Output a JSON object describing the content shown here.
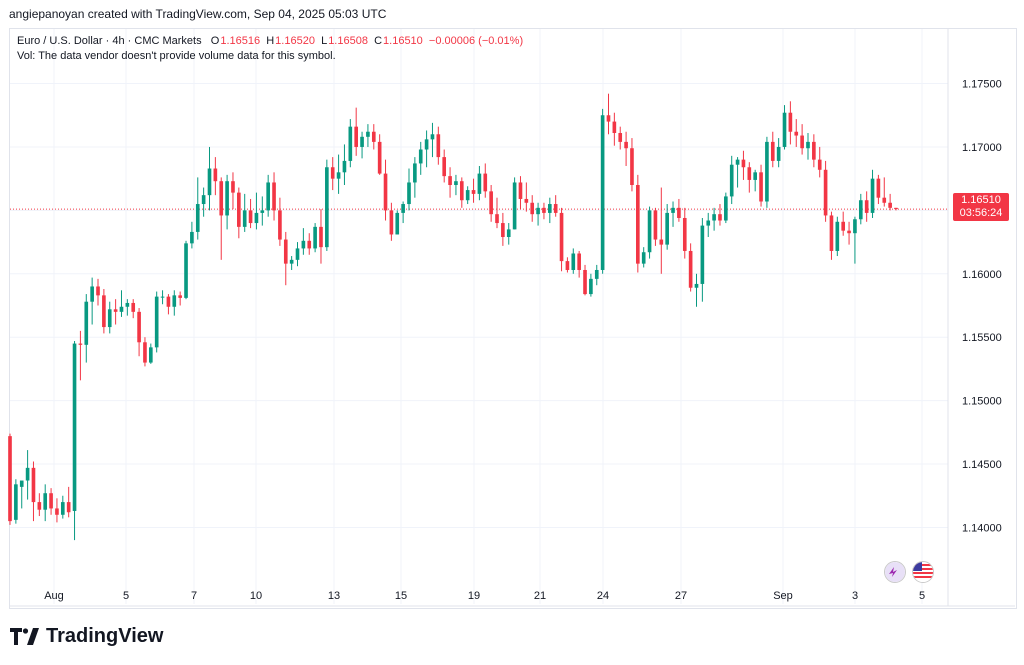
{
  "header": {
    "created_line": "angiepanoyan created with TradingView.com, Sep 04, 2025 05:03 UTC"
  },
  "legend": {
    "symbol": "Euro / U.S. Dollar · 4h · CMC Markets",
    "o_label": "O",
    "o_value": "1.16516",
    "h_label": "H",
    "h_value": "1.16520",
    "l_label": "L",
    "l_value": "1.16508",
    "c_label": "C",
    "c_value": "1.16510",
    "change": "−0.00006 (−0.01%)",
    "vol_text": "Vol: The data vendor doesn't provide volume data for this symbol."
  },
  "price_tag": {
    "price": "1.16510",
    "countdown": "03:56:24"
  },
  "colors": {
    "up": "#089981",
    "down": "#f23645",
    "grid": "#f0f3fa",
    "text": "#131722"
  },
  "logo": {
    "text": "TradingView"
  },
  "flag_icons": [
    "eu-flag-icon",
    "us-flag-icon"
  ],
  "chart_data": {
    "type": "candlestick",
    "title": "Euro / U.S. Dollar · 4h · CMC Markets",
    "y_ticks": [
      "1.17500",
      "1.17000",
      "1.16500",
      "1.16000",
      "1.15500",
      "1.15000",
      "1.14500",
      "1.14000"
    ],
    "y_tick_values": [
      1.175,
      1.17,
      1.165,
      1.16,
      1.155,
      1.15,
      1.145,
      1.14
    ],
    "x_ticks": [
      "Aug",
      "5",
      "7",
      "10",
      "13",
      "15",
      "19",
      "21",
      "24",
      "27",
      "Sep",
      "3",
      "5"
    ],
    "ylim": [
      1.1357,
      1.1793
    ],
    "last_price": 1.1651,
    "grid": true,
    "points": [
      [
        1.1472,
        1.1474,
        1.1402,
        1.1405
      ],
      [
        1.1406,
        1.1438,
        1.1403,
        1.1434
      ],
      [
        1.1432,
        1.1436,
        1.1415,
        1.1437
      ],
      [
        1.1437,
        1.1461,
        1.1422,
        1.1447
      ],
      [
        1.1447,
        1.1452,
        1.1405,
        1.142
      ],
      [
        1.142,
        1.1427,
        1.1409,
        1.1414
      ],
      [
        1.1414,
        1.1434,
        1.1405,
        1.1427
      ],
      [
        1.1427,
        1.1431,
        1.141,
        1.1415
      ],
      [
        1.1415,
        1.1423,
        1.1404,
        1.141
      ],
      [
        1.141,
        1.1425,
        1.1407,
        1.142
      ],
      [
        1.142,
        1.1432,
        1.1408,
        1.1412
      ],
      [
        1.1413,
        1.1547,
        1.139,
        1.1545
      ],
      [
        1.1545,
        1.1555,
        1.1516,
        1.1544
      ],
      [
        1.1544,
        1.1584,
        1.153,
        1.1578
      ],
      [
        1.1578,
        1.1597,
        1.156,
        1.159
      ],
      [
        1.159,
        1.1596,
        1.1575,
        1.1583
      ],
      [
        1.1583,
        1.1588,
        1.1553,
        1.1558
      ],
      [
        1.1558,
        1.1578,
        1.1553,
        1.1572
      ],
      [
        1.1572,
        1.158,
        1.156,
        1.157
      ],
      [
        1.157,
        1.1587,
        1.1566,
        1.1574
      ],
      [
        1.1574,
        1.158,
        1.1567,
        1.1577
      ],
      [
        1.1577,
        1.158,
        1.1565,
        1.157
      ],
      [
        1.157,
        1.1573,
        1.1535,
        1.1546
      ],
      [
        1.1546,
        1.155,
        1.1527,
        1.153
      ],
      [
        1.153,
        1.1545,
        1.1529,
        1.1542
      ],
      [
        1.1542,
        1.1586,
        1.1538,
        1.1582
      ],
      [
        1.1582,
        1.1587,
        1.1576,
        1.1582
      ],
      [
        1.1582,
        1.1584,
        1.1568,
        1.1574
      ],
      [
        1.1574,
        1.1587,
        1.1567,
        1.1583
      ],
      [
        1.1583,
        1.1586,
        1.1575,
        1.1581
      ],
      [
        1.1581,
        1.1626,
        1.158,
        1.1624
      ],
      [
        1.1624,
        1.1641,
        1.162,
        1.1633
      ],
      [
        1.1633,
        1.1676,
        1.1627,
        1.1655
      ],
      [
        1.1655,
        1.1668,
        1.1645,
        1.1662
      ],
      [
        1.1662,
        1.17,
        1.165,
        1.1683
      ],
      [
        1.1683,
        1.1692,
        1.1662,
        1.1673
      ],
      [
        1.1673,
        1.1676,
        1.1611,
        1.1646
      ],
      [
        1.1646,
        1.1678,
        1.1635,
        1.1673
      ],
      [
        1.1673,
        1.168,
        1.1651,
        1.1664
      ],
      [
        1.1664,
        1.1668,
        1.1628,
        1.1637
      ],
      [
        1.1637,
        1.1663,
        1.1633,
        1.165
      ],
      [
        1.165,
        1.1659,
        1.1636,
        1.164
      ],
      [
        1.164,
        1.1664,
        1.1635,
        1.1648
      ],
      [
        1.1648,
        1.1661,
        1.1638,
        1.165
      ],
      [
        1.165,
        1.1678,
        1.1645,
        1.1672
      ],
      [
        1.1672,
        1.168,
        1.1642,
        1.165
      ],
      [
        1.165,
        1.166,
        1.1622,
        1.1627
      ],
      [
        1.1627,
        1.1633,
        1.1591,
        1.1608
      ],
      [
        1.1608,
        1.1614,
        1.1603,
        1.1611
      ],
      [
        1.1611,
        1.1625,
        1.1606,
        1.162
      ],
      [
        1.162,
        1.1636,
        1.1615,
        1.1626
      ],
      [
        1.1626,
        1.1632,
        1.1615,
        1.162
      ],
      [
        1.162,
        1.164,
        1.1617,
        1.1637
      ],
      [
        1.1637,
        1.1651,
        1.1608,
        1.1621
      ],
      [
        1.1621,
        1.169,
        1.1618,
        1.1684
      ],
      [
        1.1684,
        1.1692,
        1.1666,
        1.1675
      ],
      [
        1.1675,
        1.1694,
        1.1663,
        1.168
      ],
      [
        1.168,
        1.1702,
        1.167,
        1.1689
      ],
      [
        1.1689,
        1.1722,
        1.1684,
        1.1716
      ],
      [
        1.1716,
        1.1731,
        1.1693,
        1.17
      ],
      [
        1.17,
        1.1712,
        1.1691,
        1.1708
      ],
      [
        1.1708,
        1.1718,
        1.17,
        1.1712
      ],
      [
        1.1712,
        1.1718,
        1.1698,
        1.1704
      ],
      [
        1.1704,
        1.171,
        1.1678,
        1.1679
      ],
      [
        1.1679,
        1.169,
        1.1642,
        1.165
      ],
      [
        1.165,
        1.1656,
        1.1626,
        1.1631
      ],
      [
        1.1631,
        1.165,
        1.1631,
        1.1648
      ],
      [
        1.1648,
        1.1657,
        1.164,
        1.1655
      ],
      [
        1.1655,
        1.1683,
        1.165,
        1.1672
      ],
      [
        1.1672,
        1.1692,
        1.166,
        1.1687
      ],
      [
        1.1687,
        1.1704,
        1.1678,
        1.1698
      ],
      [
        1.1698,
        1.1713,
        1.1684,
        1.1706
      ],
      [
        1.1706,
        1.1719,
        1.1692,
        1.171
      ],
      [
        1.171,
        1.1716,
        1.1686,
        1.1692
      ],
      [
        1.1692,
        1.1698,
        1.1672,
        1.1677
      ],
      [
        1.1677,
        1.1684,
        1.166,
        1.167
      ],
      [
        1.167,
        1.1678,
        1.1662,
        1.1673
      ],
      [
        1.1673,
        1.1676,
        1.1652,
        1.1658
      ],
      [
        1.1658,
        1.1669,
        1.1655,
        1.1666
      ],
      [
        1.1666,
        1.1675,
        1.1656,
        1.1663
      ],
      [
        1.1663,
        1.1685,
        1.1658,
        1.1679
      ],
      [
        1.1679,
        1.1687,
        1.166,
        1.1665
      ],
      [
        1.1665,
        1.167,
        1.1641,
        1.1647
      ],
      [
        1.1647,
        1.166,
        1.1636,
        1.164
      ],
      [
        1.164,
        1.1648,
        1.1622,
        1.1629
      ],
      [
        1.1629,
        1.164,
        1.1623,
        1.1635
      ],
      [
        1.1635,
        1.1676,
        1.1635,
        1.1672
      ],
      [
        1.1672,
        1.1677,
        1.1651,
        1.1659
      ],
      [
        1.1659,
        1.1672,
        1.1649,
        1.1656
      ],
      [
        1.1656,
        1.1662,
        1.1641,
        1.1647
      ],
      [
        1.1647,
        1.1656,
        1.1638,
        1.1652
      ],
      [
        1.1652,
        1.1656,
        1.1643,
        1.1648
      ],
      [
        1.1648,
        1.166,
        1.164,
        1.1655
      ],
      [
        1.1655,
        1.1662,
        1.1645,
        1.1648
      ],
      [
        1.1648,
        1.1652,
        1.1602,
        1.161
      ],
      [
        1.161,
        1.1613,
        1.1601,
        1.1603
      ],
      [
        1.1603,
        1.162,
        1.16,
        1.1616
      ],
      [
        1.1616,
        1.1618,
        1.1597,
        1.1603
      ],
      [
        1.1603,
        1.1607,
        1.1583,
        1.1584
      ],
      [
        1.1584,
        1.16,
        1.1582,
        1.1596
      ],
      [
        1.1596,
        1.1607,
        1.1591,
        1.1603
      ],
      [
        1.1603,
        1.173,
        1.16,
        1.1725
      ],
      [
        1.1725,
        1.1742,
        1.171,
        1.172
      ],
      [
        1.172,
        1.1727,
        1.1701,
        1.1711
      ],
      [
        1.1711,
        1.1716,
        1.1698,
        1.1704
      ],
      [
        1.1704,
        1.1712,
        1.1685,
        1.1699
      ],
      [
        1.1699,
        1.1707,
        1.1665,
        1.167
      ],
      [
        1.167,
        1.1678,
        1.1601,
        1.1608
      ],
      [
        1.1608,
        1.1621,
        1.1605,
        1.1617
      ],
      [
        1.1617,
        1.1653,
        1.1612,
        1.165
      ],
      [
        1.165,
        1.1652,
        1.1622,
        1.1627
      ],
      [
        1.1627,
        1.1668,
        1.16,
        1.1623
      ],
      [
        1.1623,
        1.1655,
        1.1619,
        1.1648
      ],
      [
        1.1648,
        1.1657,
        1.1637,
        1.1652
      ],
      [
        1.1652,
        1.1659,
        1.1641,
        1.1644
      ],
      [
        1.1644,
        1.1652,
        1.1612,
        1.1618
      ],
      [
        1.1618,
        1.1624,
        1.1586,
        1.1589
      ],
      [
        1.1589,
        1.16,
        1.1574,
        1.1592
      ],
      [
        1.1592,
        1.1644,
        1.1578,
        1.1638
      ],
      [
        1.1638,
        1.1648,
        1.1629,
        1.1642
      ],
      [
        1.1642,
        1.1652,
        1.1634,
        1.1647
      ],
      [
        1.1647,
        1.1655,
        1.1638,
        1.1642
      ],
      [
        1.1642,
        1.1664,
        1.164,
        1.1661
      ],
      [
        1.1661,
        1.1693,
        1.1655,
        1.1686
      ],
      [
        1.1686,
        1.1692,
        1.1668,
        1.169
      ],
      [
        1.169,
        1.1697,
        1.1674,
        1.1684
      ],
      [
        1.1684,
        1.1688,
        1.1664,
        1.1674
      ],
      [
        1.1674,
        1.1682,
        1.1665,
        1.168
      ],
      [
        1.168,
        1.1686,
        1.1653,
        1.1657
      ],
      [
        1.1657,
        1.1708,
        1.1652,
        1.1704
      ],
      [
        1.1704,
        1.1712,
        1.1684,
        1.1689
      ],
      [
        1.1689,
        1.1707,
        1.1684,
        1.17
      ],
      [
        1.17,
        1.1733,
        1.1698,
        1.1727
      ],
      [
        1.1727,
        1.1736,
        1.1702,
        1.1712
      ],
      [
        1.1712,
        1.1722,
        1.17,
        1.1709
      ],
      [
        1.1709,
        1.1718,
        1.1694,
        1.1699
      ],
      [
        1.1699,
        1.1711,
        1.169,
        1.1704
      ],
      [
        1.1704,
        1.171,
        1.1684,
        1.169
      ],
      [
        1.169,
        1.17,
        1.1676,
        1.1682
      ],
      [
        1.1682,
        1.1689,
        1.1641,
        1.1646
      ],
      [
        1.1646,
        1.1649,
        1.1611,
        1.1618
      ],
      [
        1.1618,
        1.1645,
        1.1614,
        1.1641
      ],
      [
        1.1641,
        1.1649,
        1.163,
        1.1634
      ],
      [
        1.1634,
        1.1641,
        1.1623,
        1.1632
      ],
      [
        1.1632,
        1.1645,
        1.1608,
        1.1643
      ],
      [
        1.1643,
        1.1663,
        1.1639,
        1.1658
      ],
      [
        1.1658,
        1.1665,
        1.1641,
        1.1648
      ],
      [
        1.1648,
        1.1682,
        1.1644,
        1.1675
      ],
      [
        1.1675,
        1.1678,
        1.1655,
        1.166
      ],
      [
        1.166,
        1.1676,
        1.1653,
        1.1656
      ],
      [
        1.1656,
        1.1663,
        1.165,
        1.1652
      ],
      [
        1.1652,
        1.1652,
        1.165,
        1.1651
      ]
    ]
  }
}
